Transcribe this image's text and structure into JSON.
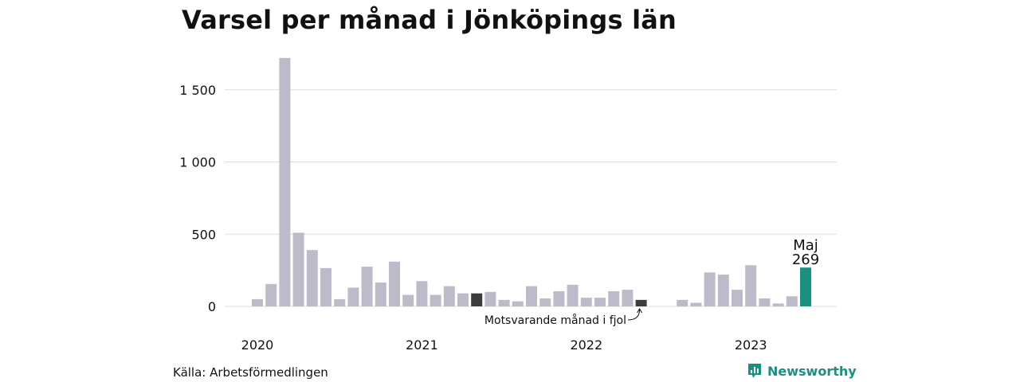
{
  "title": "Varsel per månad i Jönköpings län",
  "source": "Källa: Arbetsförmedlingen",
  "brand": "Newsworthy",
  "colors": {
    "bar": "#bdbac9",
    "highlight_prior": "#3c3c3c",
    "current": "#1a9080",
    "grid": "#dddddd",
    "text": "#111111"
  },
  "chart_data": {
    "type": "bar",
    "title": "Varsel per månad i Jönköpings län",
    "ylim": [
      0,
      1700
    ],
    "yticks": [
      0,
      500,
      1000,
      1500
    ],
    "ytick_labels": [
      "0",
      "500",
      "1 000",
      "1 500"
    ],
    "year_labels": [
      {
        "label": "2020",
        "index": 0
      },
      {
        "label": "2021",
        "index": 12
      },
      {
        "label": "2022",
        "index": 24
      },
      {
        "label": "2023",
        "index": 36
      }
    ],
    "categories": [
      "2020-01",
      "2020-02",
      "2020-03",
      "2020-04",
      "2020-05",
      "2020-06",
      "2020-07",
      "2020-08",
      "2020-09",
      "2020-10",
      "2020-11",
      "2020-12",
      "2021-01",
      "2021-02",
      "2021-03",
      "2021-04",
      "2021-05",
      "2021-06",
      "2021-07",
      "2021-08",
      "2021-09",
      "2021-10",
      "2021-11",
      "2021-12",
      "2022-01",
      "2022-02",
      "2022-03",
      "2022-04",
      "2022-05",
      "2022-06",
      "2022-07",
      "2022-08",
      "2022-09",
      "2022-10",
      "2022-11",
      "2022-12",
      "2023-01",
      "2023-02",
      "2023-03",
      "2023-04",
      "2023-05"
    ],
    "values": [
      50,
      155,
      1720,
      510,
      390,
      265,
      50,
      130,
      275,
      165,
      310,
      80,
      175,
      80,
      140,
      90,
      90,
      100,
      45,
      35,
      140,
      55,
      105,
      150,
      60,
      60,
      105,
      115,
      45,
      0,
      0,
      45,
      25,
      235,
      220,
      115,
      285,
      55,
      20,
      70,
      269
    ],
    "highlights": {
      "2021-05": "prior",
      "2022-05": "prior",
      "2023-05": "current"
    },
    "current_label": {
      "month": "Maj",
      "value": "269"
    },
    "annotation": {
      "text": "Motsvarande månad i fjol",
      "target": "2022-05"
    },
    "grid": true,
    "legend": "none"
  }
}
